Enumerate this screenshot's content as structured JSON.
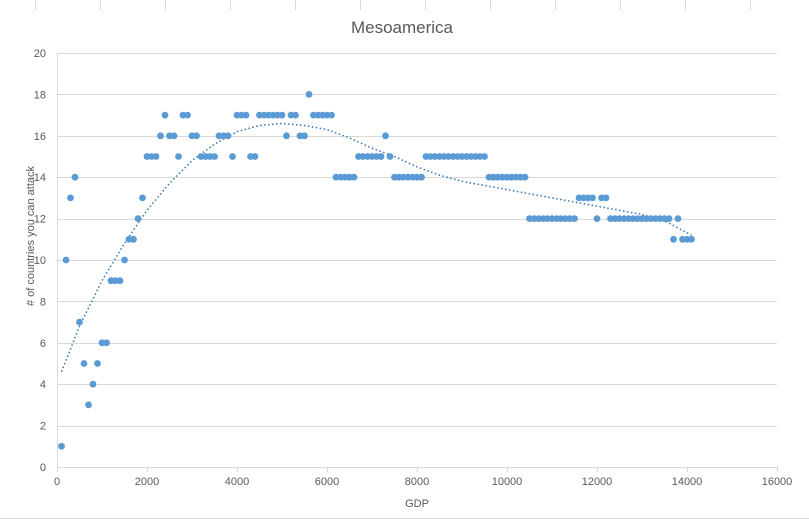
{
  "chart_data": {
    "type": "scatter",
    "title": "Mesoamerica",
    "xlabel": "GDP",
    "ylabel": "# of countries you can attack",
    "xlim": [
      0,
      16000
    ],
    "ylim": [
      0,
      20
    ],
    "x_ticks": [
      "0",
      "2000",
      "4000",
      "6000",
      "8000",
      "10000",
      "12000",
      "14000",
      "16000"
    ],
    "y_ticks": [
      "0",
      "2",
      "4",
      "6",
      "8",
      "10",
      "12",
      "14",
      "16",
      "18",
      "20"
    ],
    "grid": "horizontal",
    "legend": "none",
    "series": [
      {
        "color": "#5b9bd5",
        "points": [
          [
            100,
            1
          ],
          [
            200,
            10
          ],
          [
            300,
            13
          ],
          [
            400,
            14
          ],
          [
            500,
            7
          ],
          [
            600,
            5
          ],
          [
            700,
            3
          ],
          [
            800,
            4
          ],
          [
            900,
            5
          ],
          [
            1000,
            6
          ],
          [
            1100,
            6
          ],
          [
            1200,
            9
          ],
          [
            1300,
            9
          ],
          [
            1400,
            9
          ],
          [
            1500,
            10
          ],
          [
            1600,
            11
          ],
          [
            1700,
            11
          ],
          [
            1800,
            12
          ],
          [
            1900,
            13
          ],
          [
            2000,
            15
          ],
          [
            2100,
            15
          ],
          [
            2200,
            15
          ],
          [
            2300,
            16
          ],
          [
            2400,
            17
          ],
          [
            2500,
            16
          ],
          [
            2600,
            16
          ],
          [
            2700,
            15
          ],
          [
            2800,
            17
          ],
          [
            2900,
            17
          ],
          [
            3000,
            16
          ],
          [
            3100,
            16
          ],
          [
            3200,
            15
          ],
          [
            3300,
            15
          ],
          [
            3400,
            15
          ],
          [
            3500,
            15
          ],
          [
            3600,
            16
          ],
          [
            3700,
            16
          ],
          [
            3800,
            16
          ],
          [
            3900,
            15
          ],
          [
            4000,
            17
          ],
          [
            4100,
            17
          ],
          [
            4200,
            17
          ],
          [
            4300,
            15
          ],
          [
            4400,
            15
          ],
          [
            4500,
            17
          ],
          [
            4600,
            17
          ],
          [
            4700,
            17
          ],
          [
            4800,
            17
          ],
          [
            4900,
            17
          ],
          [
            5000,
            17
          ],
          [
            5100,
            16
          ],
          [
            5200,
            17
          ],
          [
            5300,
            17
          ],
          [
            5400,
            16
          ],
          [
            5500,
            16
          ],
          [
            5600,
            18
          ],
          [
            5700,
            17
          ],
          [
            5800,
            17
          ],
          [
            5900,
            17
          ],
          [
            6000,
            17
          ],
          [
            6100,
            17
          ],
          [
            6200,
            14
          ],
          [
            6300,
            14
          ],
          [
            6400,
            14
          ],
          [
            6500,
            14
          ],
          [
            6600,
            14
          ],
          [
            6700,
            15
          ],
          [
            6800,
            15
          ],
          [
            6900,
            15
          ],
          [
            7000,
            15
          ],
          [
            7100,
            15
          ],
          [
            7200,
            15
          ],
          [
            7300,
            16
          ],
          [
            7400,
            15
          ],
          [
            7500,
            14
          ],
          [
            7600,
            14
          ],
          [
            7700,
            14
          ],
          [
            7800,
            14
          ],
          [
            7900,
            14
          ],
          [
            8000,
            14
          ],
          [
            8100,
            14
          ],
          [
            8200,
            15
          ],
          [
            8300,
            15
          ],
          [
            8400,
            15
          ],
          [
            8500,
            15
          ],
          [
            8600,
            15
          ],
          [
            8700,
            15
          ],
          [
            8800,
            15
          ],
          [
            8900,
            15
          ],
          [
            9000,
            15
          ],
          [
            9100,
            15
          ],
          [
            9200,
            15
          ],
          [
            9300,
            15
          ],
          [
            9400,
            15
          ],
          [
            9500,
            15
          ],
          [
            9600,
            14
          ],
          [
            9700,
            14
          ],
          [
            9800,
            14
          ],
          [
            9900,
            14
          ],
          [
            10000,
            14
          ],
          [
            10100,
            14
          ],
          [
            10200,
            14
          ],
          [
            10300,
            14
          ],
          [
            10400,
            14
          ],
          [
            10500,
            12
          ],
          [
            10600,
            12
          ],
          [
            10700,
            12
          ],
          [
            10800,
            12
          ],
          [
            10900,
            12
          ],
          [
            11000,
            12
          ],
          [
            11100,
            12
          ],
          [
            11200,
            12
          ],
          [
            11300,
            12
          ],
          [
            11400,
            12
          ],
          [
            11500,
            12
          ],
          [
            11600,
            13
          ],
          [
            11700,
            13
          ],
          [
            11800,
            13
          ],
          [
            11900,
            13
          ],
          [
            12000,
            12
          ],
          [
            12100,
            13
          ],
          [
            12200,
            13
          ],
          [
            12300,
            12
          ],
          [
            12400,
            12
          ],
          [
            12500,
            12
          ],
          [
            12600,
            12
          ],
          [
            12700,
            12
          ],
          [
            12800,
            12
          ],
          [
            12900,
            12
          ],
          [
            13000,
            12
          ],
          [
            13100,
            12
          ],
          [
            13200,
            12
          ],
          [
            13300,
            12
          ],
          [
            13400,
            12
          ],
          [
            13500,
            12
          ],
          [
            13600,
            12
          ],
          [
            13700,
            11
          ],
          [
            13800,
            12
          ],
          [
            13900,
            11
          ],
          [
            14000,
            11
          ],
          [
            14100,
            11
          ]
        ]
      }
    ],
    "trendline": {
      "type": "polynomial",
      "style": "dotted",
      "color": "#2e75b6",
      "x_range": [
        100,
        14100
      ],
      "points": [
        [
          100,
          4.6
        ],
        [
          500,
          6.8
        ],
        [
          1000,
          9.0
        ],
        [
          1500,
          10.8
        ],
        [
          2000,
          12.4
        ],
        [
          2500,
          13.7
        ],
        [
          3000,
          14.8
        ],
        [
          3500,
          15.6
        ],
        [
          4000,
          16.2
        ],
        [
          4500,
          16.5
        ],
        [
          5000,
          16.6
        ],
        [
          5500,
          16.5
        ],
        [
          6000,
          16.3
        ],
        [
          6500,
          15.9
        ],
        [
          7000,
          15.4
        ],
        [
          7500,
          15.0
        ],
        [
          8000,
          14.5
        ],
        [
          8500,
          14.1
        ],
        [
          9000,
          13.8
        ],
        [
          9500,
          13.6
        ],
        [
          10000,
          13.4
        ],
        [
          10500,
          13.2
        ],
        [
          11000,
          13.0
        ],
        [
          11500,
          12.8
        ],
        [
          12000,
          12.6
        ],
        [
          12500,
          12.4
        ],
        [
          13000,
          12.2
        ],
        [
          13500,
          11.9
        ],
        [
          14100,
          11.2
        ]
      ]
    }
  }
}
